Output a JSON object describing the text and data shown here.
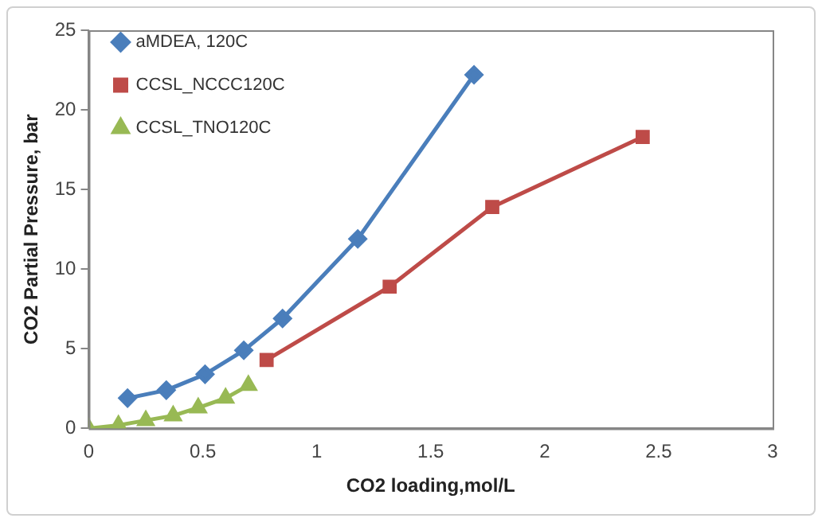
{
  "chart_data": {
    "type": "line",
    "xlabel": "CO2 loading,mol/L",
    "ylabel": "CO2 Partial Pressure, bar",
    "xlim": [
      0,
      3
    ],
    "xticks": [
      0,
      0.5,
      1,
      1.5,
      2,
      2.5,
      3
    ],
    "ylim": [
      0,
      25
    ],
    "yticks": [
      0,
      5,
      10,
      15,
      20,
      25
    ],
    "grid": false,
    "legend": "top left",
    "line_style": "solid",
    "series": [
      {
        "name": "aMDEA, 120C",
        "color": "#4a7ebb",
        "marker": "diamond",
        "x": [
          0.17,
          0.34,
          0.51,
          0.68,
          0.85,
          1.18,
          1.69
        ],
        "values": [
          1.9,
          2.4,
          3.4,
          4.9,
          6.9,
          11.9,
          22.2
        ]
      },
      {
        "name": "CCSL_NCCC120C",
        "color": "#be4b48",
        "marker": "square",
        "x": [
          0.78,
          1.32,
          1.77,
          2.43
        ],
        "values": [
          4.3,
          8.9,
          13.9,
          18.3
        ]
      },
      {
        "name": "CCSL_TNO120C",
        "color": "#98b954",
        "marker": "triangle",
        "x": [
          0,
          0.13,
          0.25,
          0.37,
          0.48,
          0.6,
          0.7
        ],
        "values": [
          0,
          0.2,
          0.5,
          0.8,
          1.3,
          1.9,
          2.7
        ]
      }
    ]
  }
}
